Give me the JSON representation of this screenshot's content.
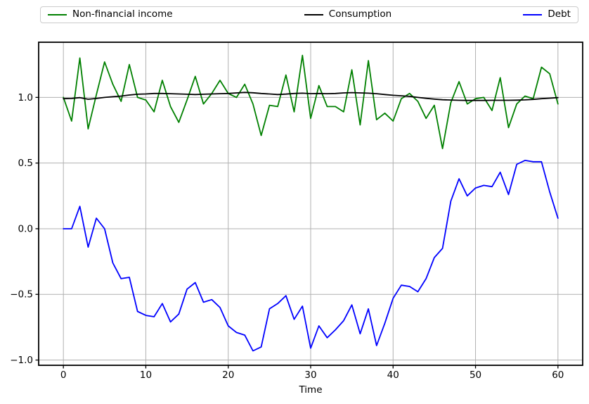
{
  "chart_data": {
    "type": "line",
    "title": "",
    "xlabel": "Time",
    "ylabel": "",
    "grid": true,
    "legend_position": "top-expanded",
    "grid_color": "#b0b0b0",
    "background_color": "#ffffff",
    "xlim": [
      -3,
      63
    ],
    "ylim": [
      -1.04,
      1.42
    ],
    "xticks": {
      "values": [
        0,
        10,
        20,
        30,
        40,
        50,
        60
      ],
      "labels": [
        "0",
        "10",
        "20",
        "30",
        "40",
        "50",
        "60"
      ]
    },
    "yticks": {
      "values": [
        1.0,
        0.5,
        0.0,
        -0.5,
        -1.0
      ],
      "labels": [
        "1.0",
        "0.5",
        "0.0",
        "−0.5",
        "−1.0"
      ]
    },
    "x": [
      0,
      1,
      2,
      3,
      4,
      5,
      6,
      7,
      8,
      9,
      10,
      11,
      12,
      13,
      14,
      15,
      16,
      17,
      18,
      19,
      20,
      21,
      22,
      23,
      24,
      25,
      26,
      27,
      28,
      29,
      30,
      31,
      32,
      33,
      34,
      35,
      36,
      37,
      38,
      39,
      40,
      41,
      42,
      43,
      44,
      45,
      46,
      47,
      48,
      49,
      50,
      51,
      52,
      53,
      54,
      55,
      56,
      57,
      58,
      59,
      60
    ],
    "series": [
      {
        "name": "Non-financial income",
        "color": "#008000",
        "values": [
          1.0,
          0.82,
          1.3,
          0.76,
          1.02,
          1.27,
          1.1,
          0.97,
          1.25,
          1.0,
          0.98,
          0.89,
          1.13,
          0.93,
          0.81,
          0.98,
          1.16,
          0.95,
          1.03,
          1.13,
          1.03,
          1.0,
          1.1,
          0.95,
          0.71,
          0.94,
          0.93,
          1.17,
          0.89,
          1.32,
          0.84,
          1.09,
          0.93,
          0.93,
          0.89,
          1.21,
          0.79,
          1.28,
          0.83,
          0.88,
          0.82,
          0.99,
          1.03,
          0.97,
          0.84,
          0.94,
          0.61,
          0.96,
          1.12,
          0.95,
          0.99,
          1.0,
          0.9,
          1.15,
          0.77,
          0.95,
          1.01,
          0.99,
          1.23,
          1.18,
          0.95
        ]
      },
      {
        "name": "Consumption",
        "color": "#000000",
        "values": [
          0.99,
          0.992,
          0.998,
          0.986,
          0.992,
          1.0,
          1.005,
          1.01,
          1.018,
          1.024,
          1.026,
          1.03,
          1.03,
          1.028,
          1.026,
          1.024,
          1.022,
          1.024,
          1.026,
          1.028,
          1.03,
          1.034,
          1.038,
          1.035,
          1.03,
          1.026,
          1.022,
          1.025,
          1.03,
          1.032,
          1.029,
          1.03,
          1.028,
          1.03,
          1.034,
          1.036,
          1.034,
          1.032,
          1.028,
          1.022,
          1.016,
          1.012,
          1.008,
          1.0,
          0.993,
          0.987,
          0.982,
          0.98,
          0.978,
          0.977,
          0.977,
          0.977,
          0.978,
          0.978,
          0.978,
          0.979,
          0.981,
          0.985,
          0.99,
          0.994,
          0.998
        ]
      },
      {
        "name": "Debt",
        "color": "#0000ff",
        "values": [
          0.0,
          0.0,
          0.17,
          -0.14,
          0.08,
          0.0,
          -0.26,
          -0.38,
          -0.37,
          -0.63,
          -0.66,
          -0.67,
          -0.57,
          -0.71,
          -0.65,
          -0.46,
          -0.41,
          -0.56,
          -0.54,
          -0.6,
          -0.74,
          -0.79,
          -0.81,
          -0.93,
          -0.9,
          -0.61,
          -0.57,
          -0.51,
          -0.69,
          -0.59,
          -0.91,
          -0.74,
          -0.83,
          -0.77,
          -0.7,
          -0.58,
          -0.8,
          -0.61,
          -0.89,
          -0.72,
          -0.53,
          -0.43,
          -0.44,
          -0.48,
          -0.38,
          -0.22,
          -0.15,
          0.21,
          0.38,
          0.25,
          0.31,
          0.33,
          0.32,
          0.43,
          0.26,
          0.49,
          0.52,
          0.51,
          0.51,
          0.28,
          0.08
        ]
      }
    ]
  }
}
